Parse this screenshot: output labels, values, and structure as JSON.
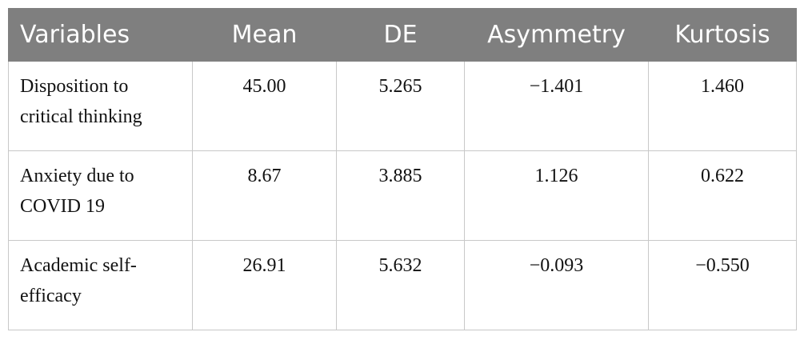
{
  "table": {
    "columns": [
      "Variables",
      "Mean",
      "DE",
      "Asymmetry",
      "Kurtosis"
    ],
    "rows": [
      [
        "Disposition to critical thinking",
        "45.00",
        "5.265",
        "−1.401",
        "1.460"
      ],
      [
        "Anxiety due to COVID 19",
        "8.67",
        "3.885",
        "1.126",
        "0.622"
      ],
      [
        "Academic self-efficacy",
        "26.91",
        "5.632",
        "−0.093",
        "−0.550"
      ]
    ]
  }
}
